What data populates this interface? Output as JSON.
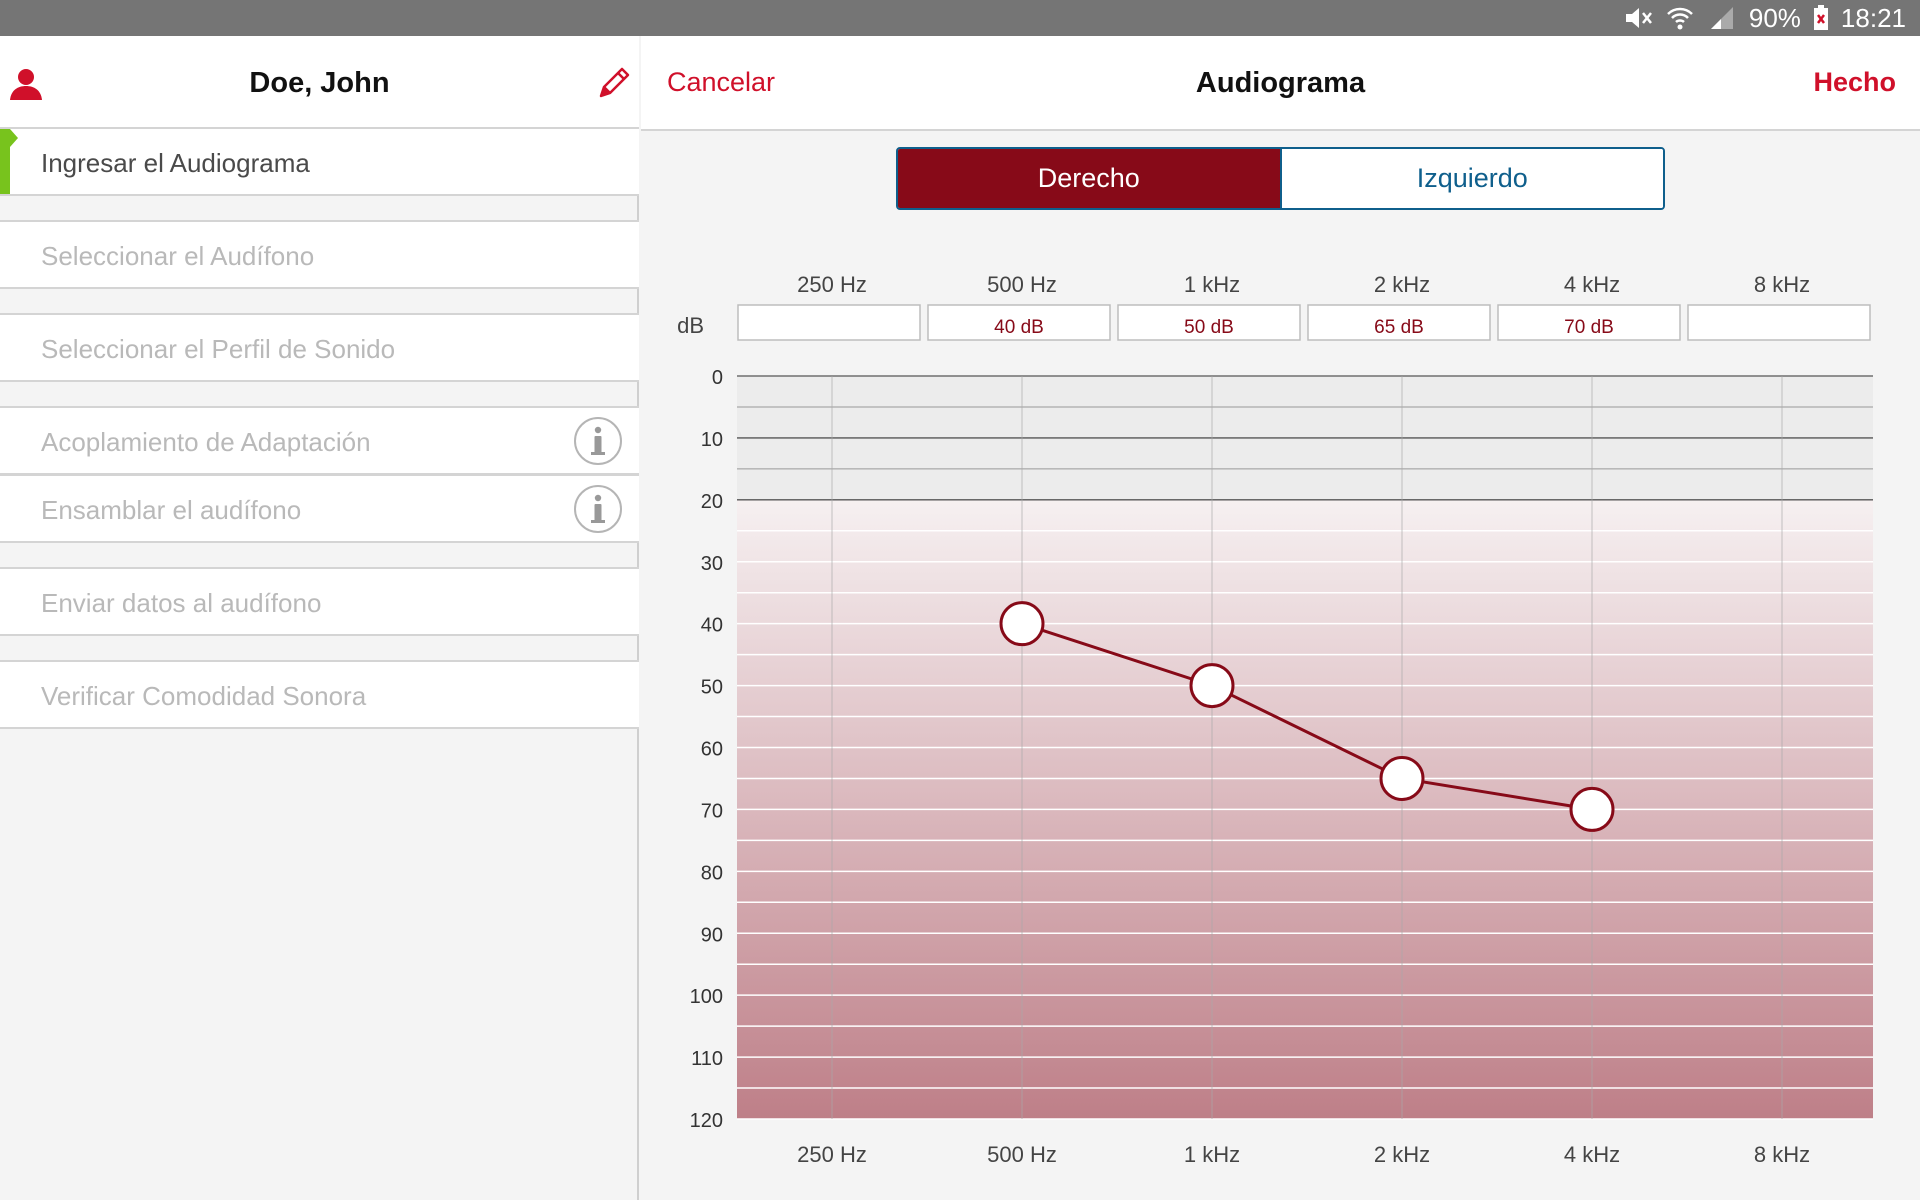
{
  "status_bar": {
    "battery": "90%",
    "time": "18:21",
    "icons": [
      "mute-icon",
      "wifi-icon",
      "signal-icon",
      "battery-icon"
    ]
  },
  "sidebar": {
    "user_name": "Doe, John",
    "icons": {
      "user": "user-icon",
      "edit": "pencil-icon"
    },
    "steps": [
      {
        "label": "Ingresar el Audiograma",
        "active": true,
        "info": false
      },
      {
        "label": "Seleccionar el Audífono",
        "active": false,
        "info": false
      },
      {
        "label": "Seleccionar el Perfil de Sonido",
        "active": false,
        "info": false
      },
      {
        "label": "Acoplamiento de Adaptación",
        "active": false,
        "info": true
      },
      {
        "label": "Ensamblar el audífono",
        "active": false,
        "info": true
      },
      {
        "label": "Enviar datos al audífono",
        "active": false,
        "info": false
      },
      {
        "label": "Verificar Comodidad Sonora",
        "active": false,
        "info": false
      }
    ]
  },
  "header": {
    "cancel_label": "Cancelar",
    "title": "Audiograma",
    "done_label": "Hecho"
  },
  "ear_toggle": {
    "right_label": "Derecho",
    "left_label": "Izquierdo",
    "selected": "right"
  },
  "colors": {
    "accent_red": "#d0102a",
    "selected_dark_red": "#870a18",
    "toggle_blue": "#0f5f8c",
    "active_green": "#78c31d"
  },
  "chart_data": {
    "type": "line",
    "x": [
      "250 Hz",
      "500 Hz",
      "1 kHz",
      "2 kHz",
      "4 kHz",
      "8 kHz"
    ],
    "values": [
      null,
      40,
      50,
      65,
      70,
      null
    ],
    "value_labels": [
      "",
      "40 dB",
      "50 dB",
      "65 dB",
      "70 dB",
      ""
    ],
    "value_row_label": "dB",
    "y_ticks": [
      0,
      10,
      20,
      30,
      40,
      50,
      60,
      70,
      80,
      90,
      100,
      110,
      120
    ],
    "ylim": [
      0,
      120
    ],
    "y_inverted": true,
    "grid": true
  }
}
